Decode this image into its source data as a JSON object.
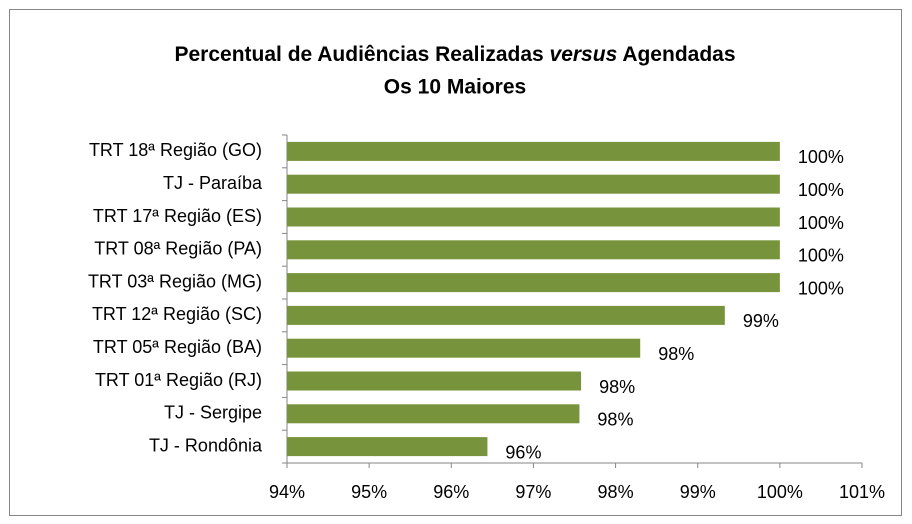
{
  "chart_data": {
    "type": "barh",
    "title": [
      "Percentual de Audiências Realizadas",
      "versus",
      "Agendadas"
    ],
    "subtitle": "Os 10 Maiores",
    "categories": [
      "TRT 18ª Região (GO)",
      "TJ - Paraíba",
      "TRT 17ª Região (ES)",
      "TRT 08ª Região (PA)",
      "TRT 03ª Região (MG)",
      "TRT 12ª Região (SC)",
      "TRT 05ª Região (BA)",
      "TRT 01ª Região (RJ)",
      "TJ - Sergipe",
      "TJ - Rondônia"
    ],
    "values": [
      100,
      100,
      100,
      100,
      100,
      99.33,
      98.3,
      97.58,
      97.56,
      96.44
    ],
    "value_labels": [
      "100%",
      "100%",
      "100%",
      "100%",
      "100%",
      "99%",
      "98%",
      "98%",
      "98%",
      "96%"
    ],
    "color": "#77933c",
    "xlim": [
      94,
      101
    ],
    "xticks": [
      {
        "value": 94,
        "label": "94%"
      },
      {
        "value": 95,
        "label": "95%"
      },
      {
        "value": 96,
        "label": "96%"
      },
      {
        "value": 97,
        "label": "97%"
      },
      {
        "value": 98,
        "label": "98%"
      },
      {
        "value": 99,
        "label": "99%"
      },
      {
        "value": 100,
        "label": "100%"
      },
      {
        "value": 101,
        "label": "101%"
      }
    ],
    "grid": false
  }
}
